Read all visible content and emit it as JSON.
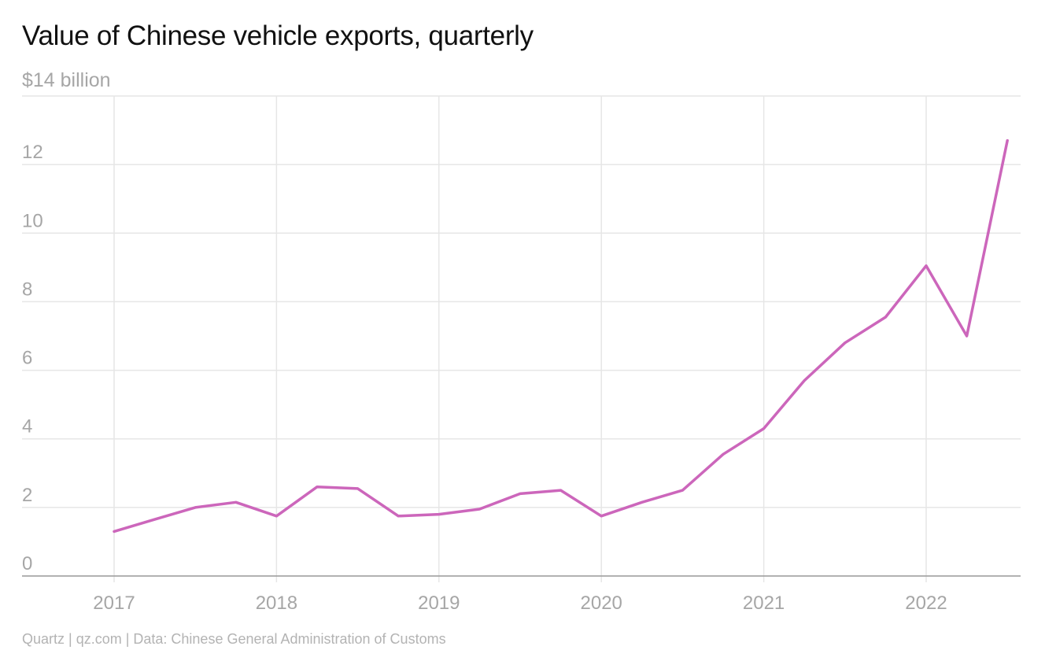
{
  "chart_data": {
    "type": "line",
    "title": "Value of Chinese vehicle exports, quarterly",
    "ylabel": "$14 billion",
    "xlabel": "",
    "ylim": [
      0,
      14
    ],
    "y_ticks": [
      {
        "value": 0,
        "label": "0"
      },
      {
        "value": 2,
        "label": "2"
      },
      {
        "value": 4,
        "label": "4"
      },
      {
        "value": 6,
        "label": "6"
      },
      {
        "value": 8,
        "label": "8"
      },
      {
        "value": 10,
        "label": "10"
      },
      {
        "value": 12,
        "label": "12"
      }
    ],
    "x_ticks": [
      {
        "value": 2017,
        "label": "2017"
      },
      {
        "value": 2018,
        "label": "2018"
      },
      {
        "value": 2019,
        "label": "2019"
      },
      {
        "value": 2020,
        "label": "2020"
      },
      {
        "value": 2021,
        "label": "2021"
      },
      {
        "value": 2022,
        "label": "2022"
      }
    ],
    "grid": true,
    "line_color": "#cc66bb",
    "series": [
      {
        "name": "",
        "x": [
          "2017-Q1",
          "2017-Q2",
          "2017-Q3",
          "2017-Q4",
          "2018-Q1",
          "2018-Q2",
          "2018-Q3",
          "2018-Q4",
          "2019-Q1",
          "2019-Q2",
          "2019-Q3",
          "2019-Q4",
          "2020-Q1",
          "2020-Q2",
          "2020-Q3",
          "2020-Q4",
          "2021-Q1",
          "2021-Q2",
          "2021-Q3",
          "2021-Q4",
          "2022-Q1",
          "2022-Q2",
          "2022-Q3"
        ],
        "values": [
          1.3,
          1.65,
          2.0,
          2.15,
          1.75,
          2.6,
          2.55,
          1.75,
          1.8,
          1.95,
          2.4,
          2.5,
          1.75,
          2.15,
          2.5,
          3.55,
          4.3,
          5.7,
          6.8,
          7.55,
          9.05,
          7.0,
          12.7
        ]
      }
    ]
  },
  "footer": {
    "source": "Quartz | qz.com | Data: Chinese General Administration of Customs"
  }
}
